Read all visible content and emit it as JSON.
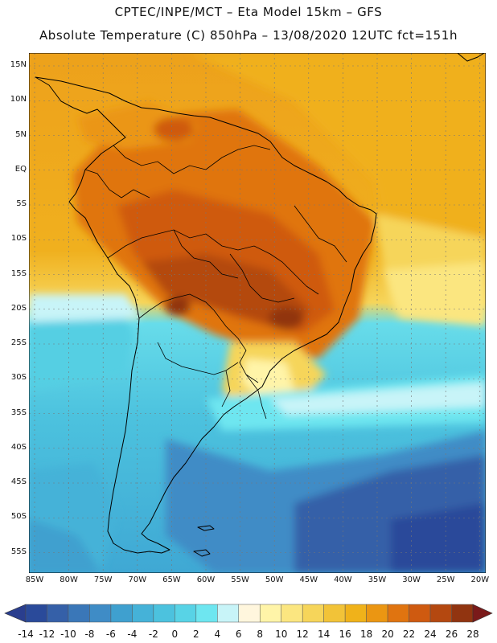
{
  "title_line1": "CPTEC/INPE/MCT –  Eta Model 15km – GFS",
  "title_line2": "Absolute Temperature (C) 850hPa – 13/08/2020 12UTC fct=151h",
  "lat_labels": [
    "15N",
    "10N",
    "5N",
    "EQ",
    "5S",
    "10S",
    "15S",
    "20S",
    "25S",
    "30S",
    "35S",
    "40S",
    "45S",
    "50S",
    "55S"
  ],
  "lon_labels": [
    "85W",
    "80W",
    "75W",
    "70W",
    "65W",
    "60W",
    "55W",
    "50W",
    "45W",
    "40W",
    "35W",
    "30W",
    "25W",
    "20W"
  ],
  "colorbar": {
    "labels": [
      "-14",
      "-12",
      "-10",
      "-8",
      "-6",
      "-4",
      "-2",
      "0",
      "2",
      "4",
      "6",
      "8",
      "10",
      "12",
      "14",
      "16",
      "18",
      "20",
      "22",
      "24",
      "26",
      "28"
    ],
    "colors": [
      "#2a4a9a",
      "#3560a8",
      "#3a77b8",
      "#3f8cc6",
      "#3fa0cf",
      "#45b2d8",
      "#4cc2de",
      "#58d3e6",
      "#6ee6f0",
      "#c8f4f8",
      "#fff6dd",
      "#fff4a8",
      "#fbe680",
      "#f6d55a",
      "#f2c338",
      "#f0b21a",
      "#eb9612",
      "#e07410",
      "#cf5a10",
      "#b44810",
      "#913410"
    ],
    "low_arrow_color": "#2a3e8e",
    "high_arrow_color": "#7a1a1a"
  }
}
